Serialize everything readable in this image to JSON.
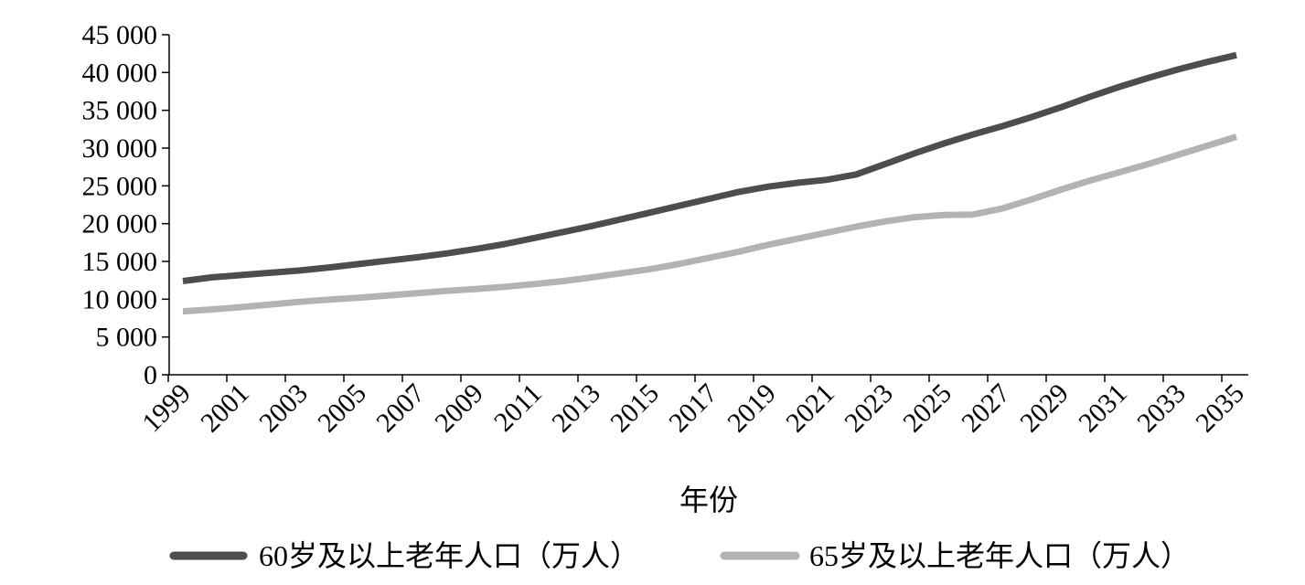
{
  "chart_data": {
    "type": "line",
    "title": "",
    "xlabel": "年份",
    "ylabel": "",
    "xlim": [
      1999,
      2035
    ],
    "ylim": [
      0,
      45000
    ],
    "grid": false,
    "legend_position": "bottom",
    "y_ticks": [
      {
        "value": 0,
        "label": "0"
      },
      {
        "value": 5000,
        "label": "5 000"
      },
      {
        "value": 10000,
        "label": "10 000"
      },
      {
        "value": 15000,
        "label": "15 000"
      },
      {
        "value": 20000,
        "label": "20 000"
      },
      {
        "value": 25000,
        "label": "25 000"
      },
      {
        "value": 30000,
        "label": "30 000"
      },
      {
        "value": 35000,
        "label": "35 000"
      },
      {
        "value": 40000,
        "label": "40 000"
      },
      {
        "value": 45000,
        "label": "45 000"
      }
    ],
    "x_ticks": [
      {
        "value": 1999,
        "label": "1999"
      },
      {
        "value": 2001,
        "label": "2001"
      },
      {
        "value": 2003,
        "label": "2003"
      },
      {
        "value": 2005,
        "label": "2005"
      },
      {
        "value": 2007,
        "label": "2007"
      },
      {
        "value": 2009,
        "label": "2009"
      },
      {
        "value": 2011,
        "label": "2011"
      },
      {
        "value": 2013,
        "label": "2013"
      },
      {
        "value": 2015,
        "label": "2015"
      },
      {
        "value": 2017,
        "label": "2017"
      },
      {
        "value": 2019,
        "label": "2019"
      },
      {
        "value": 2021,
        "label": "2021"
      },
      {
        "value": 2023,
        "label": "2023"
      },
      {
        "value": 2025,
        "label": "2025"
      },
      {
        "value": 2027,
        "label": "2027"
      },
      {
        "value": 2029,
        "label": "2029"
      },
      {
        "value": 2031,
        "label": "2031"
      },
      {
        "value": 2033,
        "label": "2033"
      },
      {
        "value": 2035,
        "label": "2035"
      }
    ],
    "x": [
      1999,
      2000,
      2001,
      2002,
      2003,
      2004,
      2005,
      2006,
      2007,
      2008,
      2009,
      2010,
      2011,
      2012,
      2013,
      2014,
      2015,
      2016,
      2017,
      2018,
      2019,
      2020,
      2021,
      2022,
      2023,
      2024,
      2025,
      2026,
      2027,
      2028,
      2029,
      2030,
      2031,
      2032,
      2033,
      2034,
      2035
    ],
    "series": [
      {
        "name": "60岁及以上老年人口（万人）",
        "color": "#4d4d4d",
        "values": [
          12400,
          12900,
          13200,
          13500,
          13800,
          14200,
          14650,
          15100,
          15550,
          16050,
          16650,
          17300,
          18100,
          18900,
          19700,
          20600,
          21500,
          22400,
          23300,
          24200,
          24900,
          25400,
          25800,
          26500,
          27900,
          29300,
          30600,
          31800,
          32900,
          34100,
          35400,
          36800,
          38100,
          39300,
          40400,
          41400,
          42300
        ]
      },
      {
        "name": "65岁及以上老年人口（万人）",
        "color": "#b3b3b3",
        "values": [
          8400,
          8650,
          8950,
          9300,
          9650,
          9950,
          10200,
          10500,
          10800,
          11100,
          11350,
          11650,
          12000,
          12400,
          12900,
          13450,
          14000,
          14700,
          15500,
          16300,
          17200,
          18000,
          18800,
          19600,
          20300,
          20850,
          21150,
          21200,
          22000,
          23200,
          24500,
          25700,
          26800,
          27900,
          29100,
          30300,
          31500
        ]
      }
    ]
  }
}
